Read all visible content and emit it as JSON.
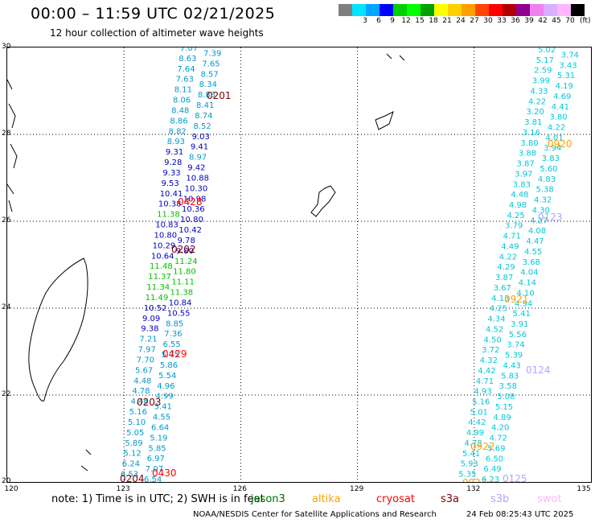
{
  "title": "00:00 – 11:59 UTC 02/21/2025",
  "subtitle": "12 hour collection of altimeter wave heights",
  "colorbar": {
    "colors": [
      "#7f7f7f",
      "#00e5ff",
      "#00a5ff",
      "#0000ff",
      "#00d000",
      "#00ff00",
      "#00a000",
      "#ffff00",
      "#ffd000",
      "#ffa000",
      "#ff4500",
      "#ff0000",
      "#b00000",
      "#900090",
      "#ee82ee",
      "#d8b0ff",
      "#ffb6ff",
      "#000000"
    ],
    "ticks": [
      "3",
      "6",
      "9",
      "12",
      "15",
      "18",
      "21",
      "24",
      "27",
      "30",
      "33",
      "36",
      "39",
      "42",
      "45",
      "70"
    ],
    "unit": "(ft)"
  },
  "map": {
    "lat_labels": [
      "30",
      "28",
      "26",
      "24",
      "22",
      "20"
    ],
    "lon_labels": [
      "120",
      "123",
      "126",
      "129",
      "132",
      "135"
    ],
    "lat_range": [
      20,
      30
    ],
    "lon_range": [
      120,
      135
    ]
  },
  "tracks": [
    {
      "values": [
        "7.07",
        "7.39",
        "8.63",
        "7.65",
        "7.64",
        "8.57",
        "7.63",
        "8.34",
        "8.11",
        "8.83",
        "8.06",
        "8.41",
        "8.48",
        "8.74",
        "8.86",
        "8.52",
        "8.82",
        "9.03",
        "8.93",
        "9.41",
        "9.31",
        "8.97",
        "9.28",
        "9.42",
        "9.33",
        "10.88",
        "9.53",
        "10.30",
        "10.41",
        "10.98",
        "10.38",
        "10.36",
        "11.38",
        "10.80",
        "10.83",
        "10.42",
        "10.80",
        "9.78",
        "10.29",
        "9.80",
        "10.64",
        "11.24",
        "11.48",
        "11.80",
        "11.37",
        "11.11",
        "11.34",
        "11.38",
        "11.49",
        "10.84",
        "10.52",
        "10.55",
        "9.09",
        "8.85",
        "9.38",
        "7.36",
        "7.21",
        "6.55",
        "7.97",
        "5.75",
        "7.70",
        "5.86",
        "5.67",
        "5.54",
        "4.48",
        "4.96",
        "4.78",
        "4.99",
        "4.46",
        "5.41",
        "5.16",
        "4.55",
        "5.10",
        "6.64",
        "5.05",
        "5.19",
        "5.89",
        "5.85",
        "5.12",
        "6.97",
        "6.24",
        "7.07",
        "6.53",
        "6.54"
      ]
    },
    {
      "values": [
        "5.02",
        "3.74",
        "5.17",
        "3.43",
        "2.59",
        "5.31",
        "3.99",
        "4.19",
        "4.33",
        "4.69",
        "4.22",
        "4.41",
        "3.20",
        "3.80",
        "3.81",
        "4.22",
        "3.16",
        "4.01",
        "3.80",
        "3.94",
        "3.88",
        "3.83",
        "3.87",
        "5.60",
        "3.97",
        "4.83",
        "3.83",
        "5.38",
        "4.48",
        "4.32",
        "4.98",
        "4.30",
        "4.25",
        "4.27",
        "3.79",
        "4.08",
        "4.71",
        "4.47",
        "4.49",
        "4.55",
        "4.22",
        "3.68",
        "4.29",
        "4.04",
        "3.87",
        "4.14",
        "3.67",
        "4.10",
        "4.13",
        "4.94",
        "4.25",
        "5.41",
        "4.34",
        "3.91",
        "4.52",
        "5.56",
        "4.50",
        "3.74",
        "3.72",
        "5.39",
        "4.32",
        "4.43",
        "4.42",
        "5.83",
        "4.71",
        "3.58",
        "4.93",
        "5.08",
        "5.16",
        "5.15",
        "5.01",
        "4.89",
        "4.42",
        "4.20",
        "4.99",
        "4.72",
        "4.78",
        "5.69",
        "5.41",
        "6.50",
        "5.93",
        "6.49",
        "5.35",
        "6.23"
      ]
    }
  ],
  "track_labels": [
    {
      "text": "0201",
      "color": "#800000"
    },
    {
      "text": "0428",
      "color": "#ff0000"
    },
    {
      "text": "0202",
      "color": "#800000"
    },
    {
      "text": "0429",
      "color": "#ff0000"
    },
    {
      "text": "0203",
      "color": "#800000"
    },
    {
      "text": "0430",
      "color": "#ff0000"
    },
    {
      "text": "0204",
      "color": "#800000"
    },
    {
      "text": "0920",
      "color": "#ffa000"
    },
    {
      "text": "0123",
      "color": "#b8a0ff"
    },
    {
      "text": "0921",
      "color": "#ffa000"
    },
    {
      "text": "0124",
      "color": "#b8a0ff"
    },
    {
      "text": "0922",
      "color": "#ffa000"
    },
    {
      "text": "0923",
      "color": "#ffa000"
    },
    {
      "text": "0125",
      "color": "#b8a0ff"
    }
  ],
  "note": "note: 1) Time is in UTC; 2) SWH is in feet",
  "satellites": [
    {
      "name": "jason3",
      "color": "#007000"
    },
    {
      "name": "altika",
      "color": "#ffa000"
    },
    {
      "name": "cryosat",
      "color": "#ff0000"
    },
    {
      "name": "s3a",
      "color": "#800000"
    },
    {
      "name": "s3b",
      "color": "#b8a0ff"
    },
    {
      "name": "swot",
      "color": "#ffb6ff"
    }
  ],
  "credit": "NOAA/NESDIS Center for Satellite Applications and Research",
  "timestamp": "24 Feb 08:25:43 UTC 2025"
}
